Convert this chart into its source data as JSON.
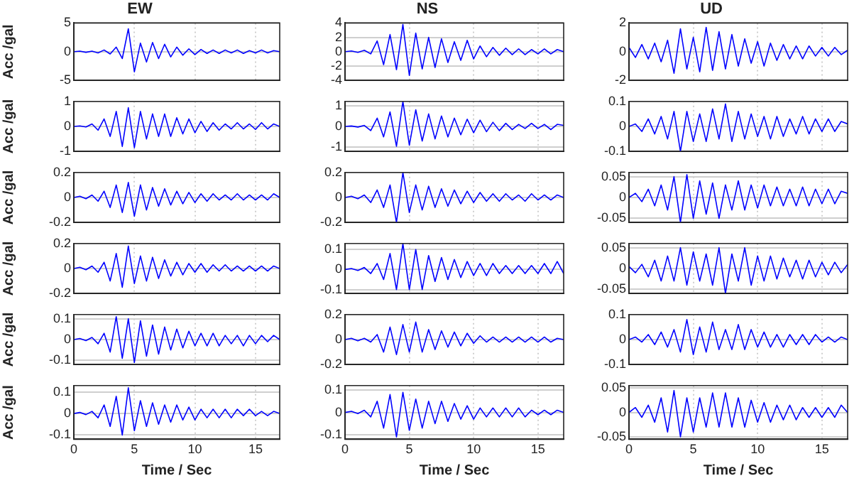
{
  "chart_data": [
    {
      "type": "line",
      "title": "EW",
      "ylabel": "Acc /gal",
      "x": [
        0,
        0.5,
        1,
        1.5,
        2,
        2.5,
        3,
        3.5,
        4,
        4.5,
        5,
        5.5,
        6,
        6.5,
        7,
        7.5,
        8,
        8.5,
        9,
        9.5,
        10,
        10.5,
        11,
        11.5,
        12,
        12.5,
        13,
        13.5,
        14,
        14.5,
        15,
        15.5,
        16,
        16.5,
        17
      ],
      "xlim": [
        0,
        17
      ],
      "xticks": [
        0,
        5,
        10,
        15
      ],
      "ylim": [
        -5,
        5
      ],
      "yticks": [
        -5,
        0,
        5
      ],
      "grid": true,
      "tick_labels": "y",
      "series": [
        {
          "color": "#0000ff",
          "values": [
            0,
            0.1,
            -0.1,
            0.1,
            -0.2,
            0.3,
            -0.4,
            0.8,
            -1.2,
            4,
            -3.5,
            1.5,
            -1.8,
            1.6,
            -1.2,
            1.3,
            -0.9,
            0.8,
            -0.6,
            0.5,
            -0.5,
            0.4,
            -0.3,
            0.3,
            -0.3,
            0.3,
            -0.2,
            0.3,
            -0.3,
            0.2,
            -0.2,
            0.3,
            -0.2,
            0.2,
            0
          ]
        }
      ]
    },
    {
      "type": "line",
      "title": "NS",
      "x": [
        0,
        0.5,
        1,
        1.5,
        2,
        2.5,
        3,
        3.5,
        4,
        4.5,
        5,
        5.5,
        6,
        6.5,
        7,
        7.5,
        8,
        8.5,
        9,
        9.5,
        10,
        10.5,
        11,
        11.5,
        12,
        12.5,
        13,
        13.5,
        14,
        14.5,
        15,
        15.5,
        16,
        16.5,
        17
      ],
      "xlim": [
        0,
        17
      ],
      "xticks": [
        0,
        5,
        10,
        15
      ],
      "ylim": [
        -4,
        4
      ],
      "yticks": [
        -4,
        -2,
        0,
        2,
        4
      ],
      "grid": true,
      "tick_labels": "y",
      "series": [
        {
          "color": "#0000ff",
          "values": [
            0,
            0.1,
            -0.1,
            0.2,
            -0.3,
            1.5,
            -1.8,
            2.4,
            -2.5,
            3.8,
            -3.3,
            2.6,
            -2.4,
            2,
            -2.2,
            1.8,
            -1.5,
            1.4,
            -1.2,
            1.6,
            -1,
            0.8,
            -0.7,
            0.6,
            -0.5,
            0.5,
            -0.4,
            0.4,
            -0.4,
            0.3,
            -0.3,
            0.4,
            -0.3,
            0.3,
            0
          ]
        }
      ]
    },
    {
      "type": "line",
      "title": "UD",
      "x": [
        0,
        0.5,
        1,
        1.5,
        2,
        2.5,
        3,
        3.5,
        4,
        4.5,
        5,
        5.5,
        6,
        6.5,
        7,
        7.5,
        8,
        8.5,
        9,
        9.5,
        10,
        10.5,
        11,
        11.5,
        12,
        12.5,
        13,
        13.5,
        14,
        14.5,
        15,
        15.5,
        16,
        16.5,
        17
      ],
      "xlim": [
        0,
        17
      ],
      "xticks": [
        0,
        5,
        10,
        15
      ],
      "ylim": [
        -2,
        2
      ],
      "yticks": [
        -2,
        0,
        2
      ],
      "grid": true,
      "tick_labels": "y",
      "series": [
        {
          "color": "#0000ff",
          "values": [
            0.3,
            -0.4,
            0.5,
            -0.5,
            0.6,
            -0.7,
            0.8,
            -1.5,
            1.6,
            -1.2,
            1,
            -1.4,
            1.7,
            -1.3,
            1.4,
            -1.2,
            1.2,
            -1,
            0.9,
            -0.8,
            0.7,
            -1,
            0.6,
            -0.6,
            0.5,
            -0.5,
            0.4,
            -0.5,
            0.4,
            -0.3,
            0.3,
            -0.3,
            0.3,
            -0.2,
            0.1
          ]
        }
      ]
    },
    {
      "type": "line",
      "ylabel": "Acc /gal",
      "x": [
        0,
        0.5,
        1,
        1.5,
        2,
        2.5,
        3,
        3.5,
        4,
        4.5,
        5,
        5.5,
        6,
        6.5,
        7,
        7.5,
        8,
        8.5,
        9,
        9.5,
        10,
        10.5,
        11,
        11.5,
        12,
        12.5,
        13,
        13.5,
        14,
        14.5,
        15,
        15.5,
        16,
        16.5,
        17
      ],
      "xlim": [
        0,
        17
      ],
      "xticks": [
        0,
        5,
        10,
        15
      ],
      "ylim": [
        -1,
        1
      ],
      "yticks": [
        -1,
        0,
        1
      ],
      "grid": true,
      "tick_labels": "y",
      "series": [
        {
          "color": "#0000ff",
          "values": [
            0,
            0.02,
            -0.02,
            0.1,
            -0.15,
            0.3,
            -0.4,
            0.6,
            -0.8,
            0.75,
            -0.85,
            0.6,
            -0.5,
            0.5,
            -0.4,
            0.5,
            -0.4,
            0.35,
            -0.3,
            0.3,
            -0.25,
            0.2,
            -0.2,
            0.15,
            -0.15,
            0.1,
            -0.1,
            0.15,
            -0.1,
            0.1,
            -0.12,
            0.15,
            -0.1,
            0.1,
            0
          ]
        }
      ]
    },
    {
      "type": "line",
      "x": [
        0,
        0.5,
        1,
        1.5,
        2,
        2.5,
        3,
        3.5,
        4,
        4.5,
        5,
        5.5,
        6,
        6.5,
        7,
        7.5,
        8,
        8.5,
        9,
        9.5,
        10,
        10.5,
        11,
        11.5,
        12,
        12.5,
        13,
        13.5,
        14,
        14.5,
        15,
        15.5,
        16,
        16.5,
        17
      ],
      "xlim": [
        0,
        17
      ],
      "xticks": [
        0,
        5,
        10,
        15
      ],
      "ylim": [
        -1.2,
        1.2
      ],
      "yticks": [
        -1,
        0,
        1
      ],
      "grid": true,
      "tick_labels": "y",
      "series": [
        {
          "color": "#0000ff",
          "values": [
            0,
            0.02,
            -0.03,
            0.05,
            -0.2,
            0.4,
            -0.5,
            0.7,
            -0.95,
            1.2,
            -0.9,
            0.8,
            -0.7,
            0.6,
            -0.6,
            0.5,
            -0.5,
            0.4,
            -0.4,
            0.35,
            -0.3,
            0.3,
            -0.25,
            0.2,
            -0.2,
            0.15,
            -0.15,
            0.1,
            -0.1,
            0.15,
            -0.1,
            0.1,
            -0.15,
            0.1,
            0.05
          ]
        }
      ]
    },
    {
      "type": "line",
      "x": [
        0,
        0.5,
        1,
        1.5,
        2,
        2.5,
        3,
        3.5,
        4,
        4.5,
        5,
        5.5,
        6,
        6.5,
        7,
        7.5,
        8,
        8.5,
        9,
        9.5,
        10,
        10.5,
        11,
        11.5,
        12,
        12.5,
        13,
        13.5,
        14,
        14.5,
        15,
        15.5,
        16,
        16.5,
        17
      ],
      "xlim": [
        0,
        17
      ],
      "xticks": [
        0,
        5,
        10,
        15
      ],
      "ylim": [
        -0.1,
        0.1
      ],
      "yticks": [
        -0.1,
        0,
        0.1
      ],
      "grid": true,
      "tick_labels": "y",
      "series": [
        {
          "color": "#0000ff",
          "values": [
            0,
            0.01,
            -0.02,
            0.03,
            -0.03,
            0.04,
            -0.05,
            0.06,
            -0.1,
            0.06,
            -0.06,
            0.05,
            -0.06,
            0.07,
            -0.05,
            0.09,
            -0.06,
            0.06,
            -0.05,
            0.05,
            -0.04,
            0.04,
            -0.05,
            0.04,
            -0.04,
            0.03,
            -0.03,
            0.04,
            -0.03,
            0.03,
            -0.02,
            0.03,
            -0.02,
            0.02,
            0.01
          ]
        }
      ]
    },
    {
      "type": "line",
      "ylabel": "Acc /gal",
      "x": [
        0,
        0.5,
        1,
        1.5,
        2,
        2.5,
        3,
        3.5,
        4,
        4.5,
        5,
        5.5,
        6,
        6.5,
        7,
        7.5,
        8,
        8.5,
        9,
        9.5,
        10,
        10.5,
        11,
        11.5,
        12,
        12.5,
        13,
        13.5,
        14,
        14.5,
        15,
        15.5,
        16,
        16.5,
        17
      ],
      "xlim": [
        0,
        17
      ],
      "xticks": [
        0,
        5,
        10,
        15
      ],
      "ylim": [
        -0.2,
        0.2
      ],
      "yticks": [
        -0.2,
        0,
        0.2
      ],
      "grid": true,
      "tick_labels": "y",
      "series": [
        {
          "color": "#0000ff",
          "values": [
            0,
            0.01,
            -0.01,
            0.02,
            -0.03,
            0.05,
            -0.08,
            0.1,
            -0.12,
            0.12,
            -0.15,
            0.1,
            -0.1,
            0.08,
            -0.07,
            0.07,
            -0.06,
            0.05,
            -0.05,
            0.04,
            -0.04,
            0.03,
            -0.03,
            0.03,
            -0.02,
            0.02,
            -0.02,
            0.03,
            -0.02,
            0.02,
            -0.02,
            0.02,
            -0.02,
            0.03,
            0
          ]
        }
      ]
    },
    {
      "type": "line",
      "x": [
        0,
        0.5,
        1,
        1.5,
        2,
        2.5,
        3,
        3.5,
        4,
        4.5,
        5,
        5.5,
        6,
        6.5,
        7,
        7.5,
        8,
        8.5,
        9,
        9.5,
        10,
        10.5,
        11,
        11.5,
        12,
        12.5,
        13,
        13.5,
        14,
        14.5,
        15,
        15.5,
        16,
        16.5,
        17
      ],
      "xlim": [
        0,
        17
      ],
      "xticks": [
        0,
        5,
        10,
        15
      ],
      "ylim": [
        -0.2,
        0.2
      ],
      "yticks": [
        -0.2,
        0,
        0.2
      ],
      "grid": true,
      "tick_labels": "y",
      "series": [
        {
          "color": "#0000ff",
          "values": [
            0,
            0.01,
            -0.01,
            0.02,
            -0.04,
            0.06,
            -0.08,
            0.1,
            -0.2,
            0.2,
            -0.12,
            0.1,
            -0.1,
            0.09,
            -0.08,
            0.07,
            -0.07,
            0.06,
            -0.05,
            0.05,
            -0.04,
            0.04,
            -0.03,
            0.03,
            -0.03,
            0.03,
            -0.02,
            0.02,
            -0.03,
            0.03,
            -0.02,
            0.02,
            -0.02,
            0.02,
            0
          ]
        }
      ]
    },
    {
      "type": "line",
      "x": [
        0,
        0.5,
        1,
        1.5,
        2,
        2.5,
        3,
        3.5,
        4,
        4.5,
        5,
        5.5,
        6,
        6.5,
        7,
        7.5,
        8,
        8.5,
        9,
        9.5,
        10,
        10.5,
        11,
        11.5,
        12,
        12.5,
        13,
        13.5,
        14,
        14.5,
        15,
        15.5,
        16,
        16.5,
        17
      ],
      "xlim": [
        0,
        17
      ],
      "xticks": [
        0,
        5,
        10,
        15
      ],
      "ylim": [
        -0.06,
        0.06
      ],
      "yticks": [
        -0.05,
        0,
        0.05
      ],
      "grid": true,
      "tick_labels": "y",
      "series": [
        {
          "color": "#0000ff",
          "values": [
            0,
            0.01,
            -0.01,
            0.02,
            -0.02,
            0.03,
            -0.03,
            0.05,
            -0.06,
            0.055,
            -0.05,
            0.04,
            -0.04,
            0.035,
            -0.05,
            0.03,
            -0.03,
            0.04,
            -0.03,
            0.03,
            -0.025,
            0.03,
            -0.02,
            0.025,
            -0.02,
            0.02,
            -0.02,
            0.025,
            -0.02,
            0.02,
            -0.015,
            0.02,
            -0.015,
            0.015,
            0.01
          ]
        }
      ]
    },
    {
      "type": "line",
      "ylabel": "Acc /gal",
      "x": [
        0,
        0.5,
        1,
        1.5,
        2,
        2.5,
        3,
        3.5,
        4,
        4.5,
        5,
        5.5,
        6,
        6.5,
        7,
        7.5,
        8,
        8.5,
        9,
        9.5,
        10,
        10.5,
        11,
        11.5,
        12,
        12.5,
        13,
        13.5,
        14,
        14.5,
        15,
        15.5,
        16,
        16.5,
        17
      ],
      "xlim": [
        0,
        17
      ],
      "xticks": [
        0,
        5,
        10,
        15
      ],
      "ylim": [
        -0.2,
        0.2
      ],
      "yticks": [
        -0.2,
        0,
        0.2
      ],
      "grid": true,
      "tick_labels": "y",
      "series": [
        {
          "color": "#0000ff",
          "values": [
            0,
            0.01,
            -0.01,
            0.02,
            -0.03,
            0.05,
            -0.1,
            0.12,
            -0.15,
            0.18,
            -0.12,
            0.1,
            -0.1,
            0.09,
            -0.08,
            0.07,
            -0.06,
            0.05,
            -0.05,
            0.04,
            -0.03,
            0.04,
            -0.03,
            0.03,
            -0.02,
            0.03,
            -0.02,
            0.02,
            -0.02,
            0.02,
            -0.02,
            0.02,
            -0.02,
            0.02,
            0
          ]
        }
      ]
    },
    {
      "type": "line",
      "x": [
        0,
        0.5,
        1,
        1.5,
        2,
        2.5,
        3,
        3.5,
        4,
        4.5,
        5,
        5.5,
        6,
        6.5,
        7,
        7.5,
        8,
        8.5,
        9,
        9.5,
        10,
        10.5,
        11,
        11.5,
        12,
        12.5,
        13,
        13.5,
        14,
        14.5,
        15,
        15.5,
        16,
        16.5,
        17
      ],
      "xlim": [
        0,
        17
      ],
      "xticks": [
        0,
        5,
        10,
        15
      ],
      "ylim": [
        -0.12,
        0.13
      ],
      "yticks": [
        -0.1,
        0,
        0.1
      ],
      "grid": true,
      "tick_labels": "y",
      "series": [
        {
          "color": "#0000ff",
          "values": [
            0,
            0.005,
            -0.005,
            0.01,
            -0.02,
            0.03,
            -0.05,
            0.08,
            -0.1,
            0.13,
            -0.1,
            0.1,
            -0.1,
            0.07,
            -0.06,
            0.06,
            -0.05,
            0.05,
            -0.04,
            0.04,
            -0.03,
            0.03,
            -0.03,
            0.03,
            -0.02,
            0.02,
            -0.02,
            0.02,
            -0.02,
            0.02,
            -0.02,
            0.03,
            -0.02,
            0.04,
            -0.02
          ]
        }
      ]
    },
    {
      "type": "line",
      "x": [
        0,
        0.5,
        1,
        1.5,
        2,
        2.5,
        3,
        3.5,
        4,
        4.5,
        5,
        5.5,
        6,
        6.5,
        7,
        7.5,
        8,
        8.5,
        9,
        9.5,
        10,
        10.5,
        11,
        11.5,
        12,
        12.5,
        13,
        13.5,
        14,
        14.5,
        15,
        15.5,
        16,
        16.5,
        17
      ],
      "xlim": [
        0,
        17
      ],
      "xticks": [
        0,
        5,
        10,
        15
      ],
      "ylim": [
        -0.06,
        0.06
      ],
      "yticks": [
        -0.05,
        0,
        0.05
      ],
      "grid": true,
      "tick_labels": "y",
      "series": [
        {
          "color": "#0000ff",
          "values": [
            0.005,
            -0.01,
            0.01,
            -0.02,
            0.02,
            -0.03,
            0.03,
            -0.03,
            0.05,
            -0.04,
            0.04,
            -0.03,
            0.035,
            -0.04,
            0.05,
            -0.06,
            0.035,
            -0.03,
            0.05,
            -0.04,
            0.03,
            -0.03,
            0.03,
            -0.025,
            0.025,
            -0.02,
            0.02,
            -0.025,
            0.02,
            -0.02,
            0.015,
            -0.015,
            0.015,
            -0.01,
            0.01
          ]
        }
      ]
    },
    {
      "type": "line",
      "ylabel": "Acc /gal",
      "x": [
        0,
        0.5,
        1,
        1.5,
        2,
        2.5,
        3,
        3.5,
        4,
        4.5,
        5,
        5.5,
        6,
        6.5,
        7,
        7.5,
        8,
        8.5,
        9,
        9.5,
        10,
        10.5,
        11,
        11.5,
        12,
        12.5,
        13,
        13.5,
        14,
        14.5,
        15,
        15.5,
        16,
        16.5,
        17
      ],
      "xlim": [
        0,
        17
      ],
      "xticks": [
        0,
        5,
        10,
        15
      ],
      "ylim": [
        -0.12,
        0.12
      ],
      "yticks": [
        -0.1,
        0,
        0.1
      ],
      "grid": true,
      "tick_labels": "y",
      "series": [
        {
          "color": "#0000ff",
          "values": [
            0,
            0.005,
            -0.005,
            0.01,
            -0.02,
            0.03,
            -0.06,
            0.11,
            -0.09,
            0.1,
            -0.11,
            0.09,
            -0.08,
            0.07,
            -0.07,
            0.06,
            -0.05,
            0.05,
            -0.04,
            0.04,
            -0.03,
            0.03,
            -0.03,
            0.03,
            -0.03,
            0.02,
            -0.02,
            0.02,
            -0.03,
            0.02,
            -0.02,
            0.02,
            -0.01,
            0.02,
            0
          ]
        }
      ]
    },
    {
      "type": "line",
      "x": [
        0,
        0.5,
        1,
        1.5,
        2,
        2.5,
        3,
        3.5,
        4,
        4.5,
        5,
        5.5,
        6,
        6.5,
        7,
        7.5,
        8,
        8.5,
        9,
        9.5,
        10,
        10.5,
        11,
        11.5,
        12,
        12.5,
        13,
        13.5,
        14,
        14.5,
        15,
        15.5,
        16,
        16.5,
        17
      ],
      "xlim": [
        0,
        17
      ],
      "xticks": [
        0,
        5,
        10,
        15
      ],
      "ylim": [
        -0.2,
        0.2
      ],
      "yticks": [
        -0.2,
        0,
        0.2
      ],
      "grid": true,
      "tick_labels": "y",
      "series": [
        {
          "color": "#0000ff",
          "values": [
            0,
            0.01,
            -0.01,
            0.01,
            -0.02,
            0.04,
            -0.1,
            0.1,
            -0.12,
            0.12,
            -0.1,
            0.14,
            -0.1,
            0.08,
            -0.08,
            0.07,
            -0.06,
            0.06,
            -0.05,
            0.05,
            -0.03,
            0.03,
            -0.02,
            0.02,
            -0.02,
            0.02,
            -0.02,
            0.02,
            -0.02,
            0.02,
            -0.02,
            0.02,
            -0.02,
            0.01,
            0
          ]
        }
      ]
    },
    {
      "type": "line",
      "x": [
        0,
        0.5,
        1,
        1.5,
        2,
        2.5,
        3,
        3.5,
        4,
        4.5,
        5,
        5.5,
        6,
        6.5,
        7,
        7.5,
        8,
        8.5,
        9,
        9.5,
        10,
        10.5,
        11,
        11.5,
        12,
        12.5,
        13,
        13.5,
        14,
        14.5,
        15,
        15.5,
        16,
        16.5,
        17
      ],
      "xlim": [
        0,
        17
      ],
      "xticks": [
        0,
        5,
        10,
        15
      ],
      "ylim": [
        -0.1,
        0.1
      ],
      "yticks": [
        -0.1,
        0,
        0.1
      ],
      "grid": true,
      "tick_labels": "y",
      "series": [
        {
          "color": "#0000ff",
          "values": [
            0,
            0.01,
            -0.01,
            0.02,
            -0.02,
            0.03,
            -0.03,
            0.04,
            -0.05,
            0.08,
            -0.06,
            0.05,
            -0.05,
            0.07,
            -0.04,
            0.04,
            -0.04,
            0.06,
            -0.04,
            0.04,
            -0.03,
            0.03,
            -0.03,
            0.02,
            -0.03,
            0.02,
            -0.02,
            0.02,
            -0.02,
            0.02,
            -0.01,
            0.01,
            -0.01,
            0.01,
            0
          ]
        }
      ]
    },
    {
      "type": "line",
      "ylabel": "Acc /gal",
      "xlabel": "Time / Sec",
      "x": [
        0,
        0.5,
        1,
        1.5,
        2,
        2.5,
        3,
        3.5,
        4,
        4.5,
        5,
        5.5,
        6,
        6.5,
        7,
        7.5,
        8,
        8.5,
        9,
        9.5,
        10,
        10.5,
        11,
        11.5,
        12,
        12.5,
        13,
        13.5,
        14,
        14.5,
        15,
        15.5,
        16,
        16.5,
        17
      ],
      "xlim": [
        0,
        17
      ],
      "xticks": [
        0,
        5,
        10,
        15
      ],
      "ylim": [
        -0.12,
        0.13
      ],
      "yticks": [
        -0.1,
        0,
        0.1
      ],
      "grid": true,
      "series": [
        {
          "color": "#0000ff",
          "values": [
            0,
            0.005,
            -0.005,
            0.01,
            -0.02,
            0.04,
            -0.06,
            0.08,
            -0.1,
            0.12,
            -0.08,
            0.06,
            -0.06,
            0.05,
            -0.05,
            0.04,
            -0.04,
            0.04,
            -0.03,
            0.03,
            -0.03,
            0.02,
            -0.02,
            0.02,
            -0.02,
            0.02,
            -0.02,
            0.02,
            -0.01,
            0.02,
            -0.01,
            0.01,
            -0.01,
            0.01,
            0
          ]
        }
      ]
    },
    {
      "type": "line",
      "xlabel": "Time / Sec",
      "x": [
        0,
        0.5,
        1,
        1.5,
        2,
        2.5,
        3,
        3.5,
        4,
        4.5,
        5,
        5.5,
        6,
        6.5,
        7,
        7.5,
        8,
        8.5,
        9,
        9.5,
        10,
        10.5,
        11,
        11.5,
        12,
        12.5,
        13,
        13.5,
        14,
        14.5,
        15,
        15.5,
        16,
        16.5,
        17
      ],
      "xlim": [
        0,
        17
      ],
      "xticks": [
        0,
        5,
        10,
        15
      ],
      "ylim": [
        -0.12,
        0.12
      ],
      "yticks": [
        -0.1,
        0,
        0.1
      ],
      "grid": true,
      "series": [
        {
          "color": "#0000ff",
          "values": [
            0,
            0.005,
            -0.005,
            0.01,
            -0.02,
            0.05,
            -0.07,
            0.08,
            -0.11,
            0.09,
            -0.08,
            0.06,
            -0.07,
            0.05,
            -0.05,
            0.05,
            -0.04,
            0.04,
            -0.03,
            0.03,
            -0.03,
            0.02,
            -0.02,
            0.02,
            -0.02,
            0.02,
            -0.02,
            0.02,
            -0.02,
            0.01,
            -0.01,
            0.01,
            -0.01,
            0.01,
            0
          ]
        }
      ]
    },
    {
      "type": "line",
      "xlabel": "Time / Sec",
      "x": [
        0,
        0.5,
        1,
        1.5,
        2,
        2.5,
        3,
        3.5,
        4,
        4.5,
        5,
        5.5,
        6,
        6.5,
        7,
        7.5,
        8,
        8.5,
        9,
        9.5,
        10,
        10.5,
        11,
        11.5,
        12,
        12.5,
        13,
        13.5,
        14,
        14.5,
        15,
        15.5,
        16,
        16.5,
        17
      ],
      "xlim": [
        0,
        17
      ],
      "xticks": [
        0,
        5,
        10,
        15
      ],
      "ylim": [
        -0.055,
        0.055
      ],
      "yticks": [
        -0.05,
        0,
        0.05
      ],
      "grid": true,
      "series": [
        {
          "color": "#0000ff",
          "values": [
            0,
            0.01,
            -0.01,
            0.015,
            -0.02,
            0.03,
            -0.04,
            0.045,
            -0.05,
            0.03,
            -0.04,
            0.03,
            -0.03,
            0.04,
            -0.03,
            0.04,
            -0.03,
            0.03,
            -0.03,
            0.025,
            -0.02,
            0.02,
            -0.02,
            0.015,
            -0.015,
            0.015,
            -0.015,
            0.01,
            -0.01,
            0.01,
            -0.01,
            0.01,
            -0.01,
            0.015,
            0
          ]
        }
      ]
    }
  ]
}
